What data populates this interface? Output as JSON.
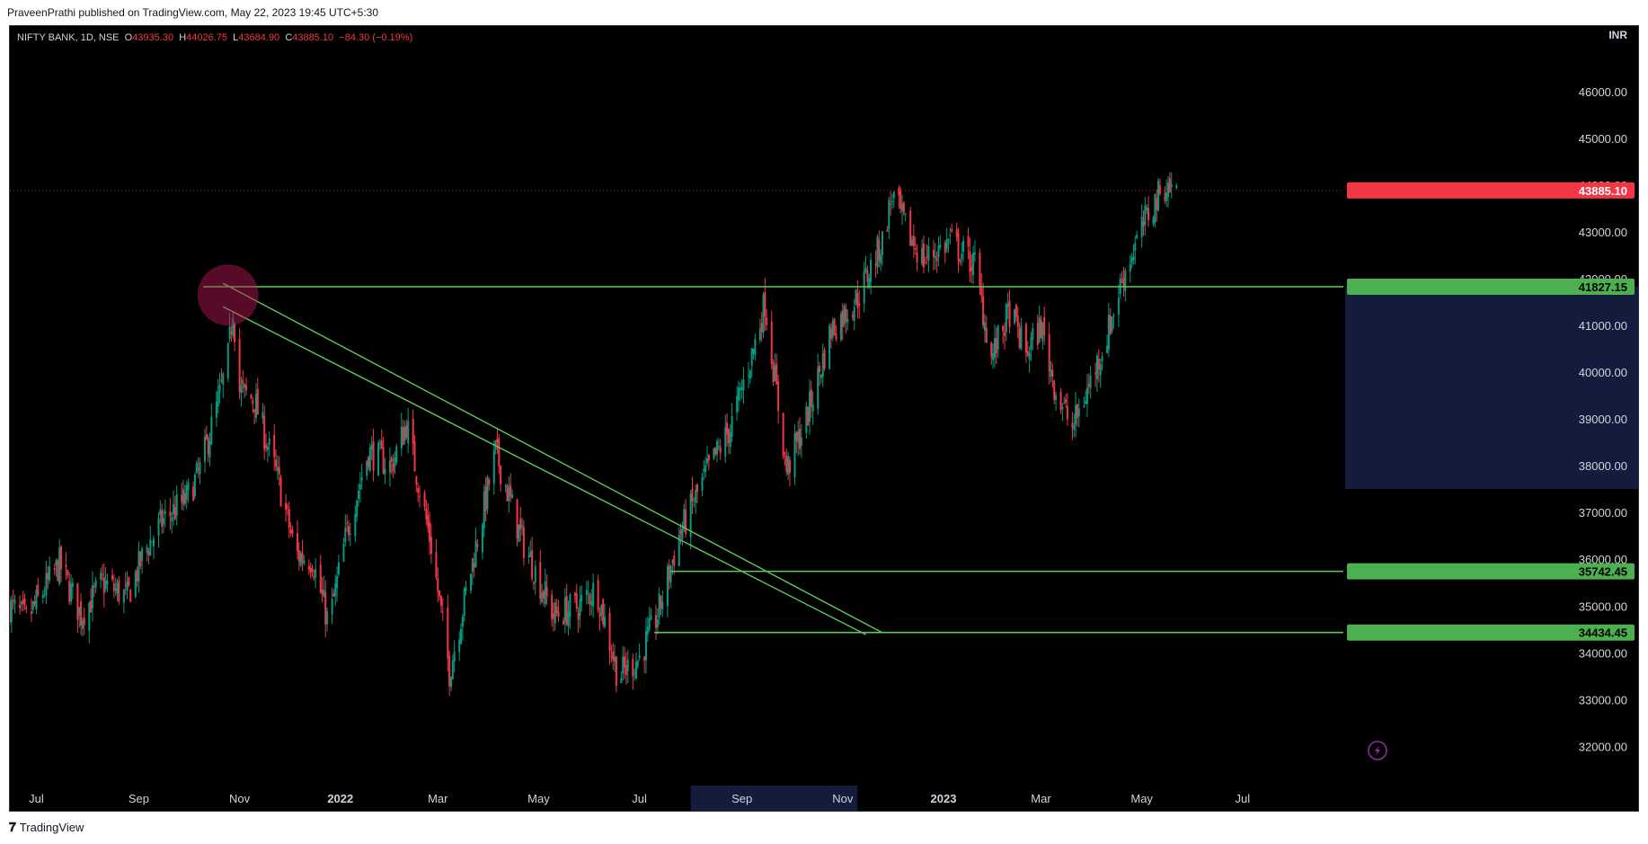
{
  "header": {
    "published_by": "PraveenPrathi published on TradingView.com, May 22, 2023 19:45 UTC+5:30"
  },
  "legend": {
    "symbol": "NIFTY BANK, 1D, NSE",
    "o_label": "O",
    "o_value": "43935.30",
    "h_label": "H",
    "h_value": "44026.75",
    "l_label": "L",
    "l_value": "43684.90",
    "c_label": "C",
    "c_value": "43885.10",
    "change": "−84.30 (−0.19%)"
  },
  "footer": {
    "brand": "TradingView"
  },
  "colors": {
    "background": "#000000",
    "up_candle": "#089981",
    "down_candle": "#f23645",
    "trend_line": "#5cc85c",
    "price_tag": "#f23645",
    "level_tag": "#4caf50",
    "axis_highlight": "#131c3c"
  },
  "chart_data": {
    "type": "candlestick",
    "currency": "INR",
    "y_range": [
      31200,
      47400
    ],
    "y_ticks": [
      "46000.00",
      "45000.00",
      "44000.00",
      "43000.00",
      "42000.00",
      "41000.00",
      "40000.00",
      "39000.00",
      "38000.00",
      "37000.00",
      "36000.00",
      "35000.00",
      "34000.00",
      "33000.00",
      "32000.00"
    ],
    "x_range": [
      "2021-06-15",
      "2023-08-31"
    ],
    "x_ticks": [
      {
        "label": "Jul",
        "date": "2021-07-01",
        "bold": false
      },
      {
        "label": "Sep",
        "date": "2021-09-01",
        "bold": false
      },
      {
        "label": "Nov",
        "date": "2021-11-01",
        "bold": false
      },
      {
        "label": "2022",
        "date": "2022-01-01",
        "bold": true
      },
      {
        "label": "Mar",
        "date": "2022-03-01",
        "bold": false
      },
      {
        "label": "May",
        "date": "2022-05-01",
        "bold": false
      },
      {
        "label": "Jul",
        "date": "2022-07-01",
        "bold": false
      },
      {
        "label": "Sep",
        "date": "2022-09-01",
        "bold": false
      },
      {
        "label": "Nov",
        "date": "2022-11-01",
        "bold": false
      },
      {
        "label": "2023",
        "date": "2023-01-01",
        "bold": true
      },
      {
        "label": "Mar",
        "date": "2023-03-01",
        "bold": false
      },
      {
        "label": "May",
        "date": "2023-05-01",
        "bold": false
      },
      {
        "label": "Jul",
        "date": "2023-07-01",
        "bold": false
      }
    ],
    "close_path": [
      [
        "2021-06-15",
        35000
      ],
      [
        "2021-06-25",
        34700
      ],
      [
        "2021-07-05",
        35300
      ],
      [
        "2021-07-15",
        35900
      ],
      [
        "2021-07-28",
        34800
      ],
      [
        "2021-08-10",
        35500
      ],
      [
        "2021-08-25",
        35200
      ],
      [
        "2021-09-05",
        36200
      ],
      [
        "2021-09-15",
        36800
      ],
      [
        "2021-09-30",
        37300
      ],
      [
        "2021-10-08",
        37900
      ],
      [
        "2021-10-20",
        39500
      ],
      [
        "2021-10-25",
        40300
      ],
      [
        "2021-10-28",
        41400
      ],
      [
        "2021-11-01",
        39600
      ],
      [
        "2021-11-10",
        39400
      ],
      [
        "2021-11-25",
        37600
      ],
      [
        "2021-12-05",
        36100
      ],
      [
        "2021-12-15",
        36000
      ],
      [
        "2021-12-25",
        34600
      ],
      [
        "2022-01-05",
        36600
      ],
      [
        "2022-01-18",
        38300
      ],
      [
        "2022-02-01",
        38000
      ],
      [
        "2022-02-10",
        38900
      ],
      [
        "2022-02-25",
        36300
      ],
      [
        "2022-03-08",
        33600
      ],
      [
        "2022-03-20",
        35600
      ],
      [
        "2022-04-05",
        38300
      ],
      [
        "2022-04-20",
        36500
      ],
      [
        "2022-05-10",
        34800
      ],
      [
        "2022-05-25",
        35000
      ],
      [
        "2022-06-05",
        35400
      ],
      [
        "2022-06-18",
        33500
      ],
      [
        "2022-07-01",
        33900
      ],
      [
        "2022-07-12",
        34800
      ],
      [
        "2022-07-25",
        36500
      ],
      [
        "2022-08-10",
        37800
      ],
      [
        "2022-08-25",
        38800
      ],
      [
        "2022-09-08",
        40500
      ],
      [
        "2022-09-15",
        41500
      ],
      [
        "2022-09-28",
        37900
      ],
      [
        "2022-10-10",
        39000
      ],
      [
        "2022-10-25",
        40900
      ],
      [
        "2022-11-10",
        41600
      ],
      [
        "2022-11-25",
        42800
      ],
      [
        "2022-12-01",
        43800
      ],
      [
        "2022-12-10",
        43000
      ],
      [
        "2022-12-20",
        42400
      ],
      [
        "2023-01-05",
        42800
      ],
      [
        "2023-01-20",
        42300
      ],
      [
        "2023-01-30",
        40300
      ],
      [
        "2023-02-10",
        41300
      ],
      [
        "2023-02-20",
        40400
      ],
      [
        "2023-03-01",
        41000
      ],
      [
        "2023-03-10",
        39600
      ],
      [
        "2023-03-20",
        38800
      ],
      [
        "2023-03-30",
        39700
      ],
      [
        "2023-04-10",
        40800
      ],
      [
        "2023-04-20",
        42100
      ],
      [
        "2023-05-05",
        43400
      ],
      [
        "2023-05-15",
        44000
      ],
      [
        "2023-05-22",
        43885
      ]
    ],
    "current_price": "43885.10",
    "levels": [
      {
        "label": "41827.15",
        "value": 41827.15,
        "from": "2021-10-10"
      },
      {
        "label": "35742.45",
        "value": 35742.45,
        "from": "2022-07-20"
      },
      {
        "label": "34434.45",
        "value": 34434.45,
        "from": "2022-07-10"
      }
    ],
    "trend_lines": [
      {
        "from": [
          "2021-10-22",
          41900
        ],
        "to": [
          "2022-11-25",
          34430
        ]
      },
      {
        "from": [
          "2021-10-22",
          41400
        ],
        "to": [
          "2022-11-15",
          34390
        ]
      }
    ],
    "highlight_circle": {
      "date": "2021-10-25",
      "value": 41650
    },
    "x_axis_highlight": [
      "2022-08-01",
      "2022-11-10"
    ],
    "y_axis_highlight": [
      37500,
      41827.15
    ]
  }
}
